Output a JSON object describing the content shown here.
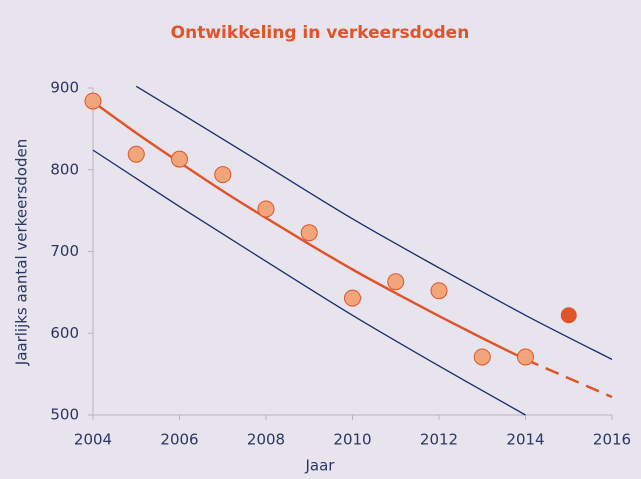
{
  "chart_data": {
    "type": "scatter",
    "title": "Ontwikkeling in verkeersdoden",
    "x_label": "Jaar",
    "y_label": "Jaarlijks aantal verkeersdoden",
    "xlim": [
      2004,
      2016
    ],
    "xticks": [
      2004,
      2006,
      2008,
      2010,
      2012,
      2014,
      2016
    ],
    "ylim": [
      500,
      900
    ],
    "yticks": [
      500,
      600,
      700,
      800,
      900
    ],
    "points": {
      "x": [
        2004,
        2005,
        2006,
        2007,
        2008,
        2009,
        2010,
        2011,
        2012,
        2013,
        2014
      ],
      "values": [
        884,
        819,
        813,
        794,
        752,
        723,
        643,
        663,
        652,
        571,
        571
      ],
      "color": "#f2a57a",
      "edge": "#e0542a"
    },
    "highlight": {
      "x": 2015,
      "value": 622,
      "color": "#e0542a"
    },
    "lines": [
      {
        "x": [
          2004,
          2005,
          2006,
          2007,
          2008,
          2009,
          2010,
          2011,
          2012,
          2013,
          2014,
          2015,
          2016
        ],
        "values": [
          883,
          845,
          809,
          774,
          741,
          709,
          678,
          649,
          621,
          594,
          568,
          545,
          522
        ],
        "color": "#e0542a",
        "dashed_from": 2014,
        "width": 2.5
      },
      {
        "x": [
          2005,
          2006,
          2008,
          2010,
          2012,
          2014,
          2016
        ],
        "values": [
          902,
          870,
          805,
          740,
          680,
          622,
          568
        ],
        "color": "#1d2a6b",
        "width": 1.3
      },
      {
        "x": [
          2004,
          2006,
          2008,
          2010,
          2012,
          2014
        ],
        "values": [
          824,
          755,
          688,
          622,
          560,
          500
        ],
        "color": "#1d2a6b",
        "width": 1.3
      }
    ]
  }
}
